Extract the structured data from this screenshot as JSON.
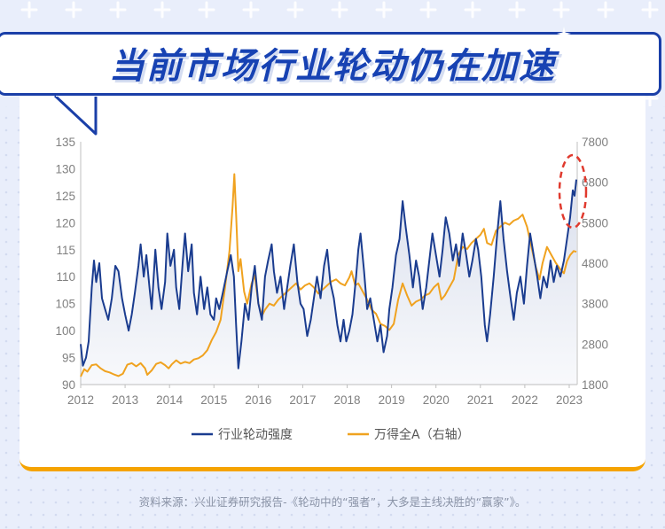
{
  "banner": {
    "title": "当前市场行业轮动仍在加速"
  },
  "source_note": "资料来源：兴业证券研究报告-《轮动中的“强者”，大多是主线决胜的“赢家”》。",
  "colors": {
    "rotation": "#1a3c8f",
    "index": "#f0a21f",
    "banner": "#1742b3",
    "highlight": "#e03a2e"
  },
  "chart_data": {
    "type": "line",
    "x_ticks": [
      "2012",
      "2013",
      "2014",
      "2015",
      "2016",
      "2017",
      "2018",
      "2019",
      "2020",
      "2021",
      "2022",
      "2023"
    ],
    "y_left": {
      "ticks": [
        "135",
        "130",
        "125",
        "120",
        "115",
        "110",
        "105",
        "100",
        "95",
        "90"
      ],
      "range": [
        90,
        135
      ]
    },
    "y_right": {
      "ticks": [
        "7800",
        "6800",
        "5800",
        "4800",
        "3800",
        "2800",
        "1800"
      ],
      "range": [
        1800,
        7800
      ]
    },
    "legend_position": "bottom",
    "grid": false,
    "annotation": "red dashed ellipse around the latest peak of 行业轮动强度 (early 2023)",
    "series": [
      {
        "name": "行业轮动强度",
        "axis": "left",
        "points": [
          [
            2012.0,
            97.5
          ],
          [
            2012.05,
            93.5
          ],
          [
            2012.12,
            95
          ],
          [
            2012.18,
            98
          ],
          [
            2012.25,
            108
          ],
          [
            2012.3,
            113
          ],
          [
            2012.35,
            109
          ],
          [
            2012.42,
            112.5
          ],
          [
            2012.48,
            106
          ],
          [
            2012.55,
            104
          ],
          [
            2012.62,
            102
          ],
          [
            2012.7,
            106
          ],
          [
            2012.78,
            112
          ],
          [
            2012.85,
            111
          ],
          [
            2012.93,
            106
          ],
          [
            2013.0,
            103
          ],
          [
            2013.08,
            100
          ],
          [
            2013.15,
            103
          ],
          [
            2013.22,
            107
          ],
          [
            2013.3,
            112
          ],
          [
            2013.35,
            116
          ],
          [
            2013.42,
            110
          ],
          [
            2013.48,
            114
          ],
          [
            2013.55,
            108
          ],
          [
            2013.6,
            104
          ],
          [
            2013.68,
            115
          ],
          [
            2013.75,
            108
          ],
          [
            2013.82,
            104
          ],
          [
            2013.9,
            109
          ],
          [
            2013.95,
            118
          ],
          [
            2014.02,
            112
          ],
          [
            2014.1,
            115
          ],
          [
            2014.15,
            108
          ],
          [
            2014.22,
            104
          ],
          [
            2014.3,
            113
          ],
          [
            2014.35,
            118
          ],
          [
            2014.42,
            111
          ],
          [
            2014.5,
            116
          ],
          [
            2014.55,
            107
          ],
          [
            2014.62,
            103
          ],
          [
            2014.7,
            110
          ],
          [
            2014.78,
            104
          ],
          [
            2014.85,
            108
          ],
          [
            2014.92,
            103
          ],
          [
            2015.0,
            102
          ],
          [
            2015.05,
            106
          ],
          [
            2015.12,
            104
          ],
          [
            2015.2,
            107
          ],
          [
            2015.3,
            111
          ],
          [
            2015.38,
            114
          ],
          [
            2015.45,
            110
          ],
          [
            2015.5,
            101
          ],
          [
            2015.55,
            93
          ],
          [
            2015.62,
            98
          ],
          [
            2015.7,
            105
          ],
          [
            2015.78,
            102
          ],
          [
            2015.85,
            108
          ],
          [
            2015.92,
            112
          ],
          [
            2016.0,
            105
          ],
          [
            2016.08,
            102
          ],
          [
            2016.15,
            110
          ],
          [
            2016.22,
            113
          ],
          [
            2016.3,
            116
          ],
          [
            2016.35,
            111
          ],
          [
            2016.42,
            107
          ],
          [
            2016.5,
            110
          ],
          [
            2016.58,
            104
          ],
          [
            2016.65,
            108
          ],
          [
            2016.72,
            112
          ],
          [
            2016.8,
            116
          ],
          [
            2016.88,
            109
          ],
          [
            2016.95,
            105
          ],
          [
            2017.02,
            104
          ],
          [
            2017.1,
            99
          ],
          [
            2017.18,
            102
          ],
          [
            2017.25,
            106
          ],
          [
            2017.32,
            110
          ],
          [
            2017.4,
            106
          ],
          [
            2017.48,
            112
          ],
          [
            2017.55,
            115
          ],
          [
            2017.62,
            109
          ],
          [
            2017.7,
            106
          ],
          [
            2017.78,
            101
          ],
          [
            2017.85,
            98
          ],
          [
            2017.92,
            102
          ],
          [
            2017.98,
            98
          ],
          [
            2018.05,
            100
          ],
          [
            2018.12,
            103
          ],
          [
            2018.2,
            110
          ],
          [
            2018.25,
            115
          ],
          [
            2018.3,
            118
          ],
          [
            2018.38,
            111
          ],
          [
            2018.45,
            104
          ],
          [
            2018.52,
            106
          ],
          [
            2018.6,
            102
          ],
          [
            2018.68,
            98
          ],
          [
            2018.75,
            101
          ],
          [
            2018.82,
            96
          ],
          [
            2018.9,
            99
          ],
          [
            2018.95,
            104
          ],
          [
            2019.02,
            108
          ],
          [
            2019.1,
            114
          ],
          [
            2019.18,
            117
          ],
          [
            2019.25,
            124
          ],
          [
            2019.32,
            119
          ],
          [
            2019.4,
            114
          ],
          [
            2019.48,
            108
          ],
          [
            2019.55,
            113
          ],
          [
            2019.62,
            110
          ],
          [
            2019.7,
            104
          ],
          [
            2019.78,
            108
          ],
          [
            2019.85,
            113
          ],
          [
            2019.92,
            118
          ],
          [
            2020.0,
            114
          ],
          [
            2020.08,
            110
          ],
          [
            2020.15,
            115
          ],
          [
            2020.22,
            121
          ],
          [
            2020.3,
            118
          ],
          [
            2020.38,
            113
          ],
          [
            2020.45,
            116
          ],
          [
            2020.52,
            112
          ],
          [
            2020.6,
            118
          ],
          [
            2020.68,
            114
          ],
          [
            2020.75,
            110
          ],
          [
            2020.82,
            113
          ],
          [
            2020.9,
            117
          ],
          [
            2020.95,
            115
          ],
          [
            2021.02,
            110
          ],
          [
            2021.1,
            101
          ],
          [
            2021.15,
            98
          ],
          [
            2021.22,
            103
          ],
          [
            2021.3,
            110
          ],
          [
            2021.38,
            118
          ],
          [
            2021.45,
            124
          ],
          [
            2021.52,
            117
          ],
          [
            2021.6,
            111
          ],
          [
            2021.68,
            106
          ],
          [
            2021.75,
            102
          ],
          [
            2021.82,
            107
          ],
          [
            2021.9,
            110
          ],
          [
            2021.98,
            105
          ],
          [
            2022.05,
            112
          ],
          [
            2022.12,
            118
          ],
          [
            2022.2,
            114
          ],
          [
            2022.28,
            110
          ],
          [
            2022.35,
            106
          ],
          [
            2022.42,
            110
          ],
          [
            2022.5,
            108
          ],
          [
            2022.58,
            113
          ],
          [
            2022.65,
            109
          ],
          [
            2022.72,
            112
          ],
          [
            2022.8,
            110
          ],
          [
            2022.88,
            113
          ],
          [
            2022.95,
            117
          ],
          [
            2023.02,
            121
          ],
          [
            2023.08,
            126
          ],
          [
            2023.12,
            125
          ],
          [
            2023.16,
            128
          ]
        ]
      },
      {
        "name": "万得全A（右轴）",
        "axis": "right",
        "points": [
          [
            2012.0,
            2000
          ],
          [
            2012.08,
            2180
          ],
          [
            2012.15,
            2120
          ],
          [
            2012.25,
            2280
          ],
          [
            2012.35,
            2300
          ],
          [
            2012.45,
            2200
          ],
          [
            2012.55,
            2130
          ],
          [
            2012.65,
            2100
          ],
          [
            2012.75,
            2050
          ],
          [
            2012.85,
            2010
          ],
          [
            2012.95,
            2070
          ],
          [
            2013.05,
            2290
          ],
          [
            2013.15,
            2330
          ],
          [
            2013.25,
            2250
          ],
          [
            2013.35,
            2330
          ],
          [
            2013.45,
            2200
          ],
          [
            2013.5,
            2040
          ],
          [
            2013.6,
            2150
          ],
          [
            2013.7,
            2310
          ],
          [
            2013.8,
            2350
          ],
          [
            2013.9,
            2280
          ],
          [
            2013.98,
            2200
          ],
          [
            2014.05,
            2300
          ],
          [
            2014.15,
            2400
          ],
          [
            2014.25,
            2320
          ],
          [
            2014.35,
            2360
          ],
          [
            2014.45,
            2330
          ],
          [
            2014.55,
            2420
          ],
          [
            2014.65,
            2450
          ],
          [
            2014.75,
            2520
          ],
          [
            2014.85,
            2650
          ],
          [
            2014.95,
            2900
          ],
          [
            2015.05,
            3100
          ],
          [
            2015.15,
            3400
          ],
          [
            2015.25,
            4200
          ],
          [
            2015.35,
            5100
          ],
          [
            2015.42,
            6200
          ],
          [
            2015.46,
            7000
          ],
          [
            2015.5,
            6000
          ],
          [
            2015.55,
            4600
          ],
          [
            2015.6,
            4900
          ],
          [
            2015.68,
            4100
          ],
          [
            2015.75,
            3800
          ],
          [
            2015.85,
            4300
          ],
          [
            2015.92,
            4500
          ],
          [
            2016.0,
            3800
          ],
          [
            2016.08,
            3500
          ],
          [
            2016.15,
            3650
          ],
          [
            2016.25,
            3800
          ],
          [
            2016.35,
            3750
          ],
          [
            2016.45,
            3900
          ],
          [
            2016.55,
            4000
          ],
          [
            2016.65,
            4100
          ],
          [
            2016.75,
            4200
          ],
          [
            2016.85,
            4300
          ],
          [
            2016.95,
            4150
          ],
          [
            2017.05,
            4250
          ],
          [
            2017.15,
            4300
          ],
          [
            2017.25,
            4200
          ],
          [
            2017.35,
            4050
          ],
          [
            2017.45,
            4150
          ],
          [
            2017.55,
            4250
          ],
          [
            2017.65,
            4350
          ],
          [
            2017.75,
            4400
          ],
          [
            2017.85,
            4300
          ],
          [
            2017.95,
            4250
          ],
          [
            2018.05,
            4450
          ],
          [
            2018.1,
            4600
          ],
          [
            2018.18,
            4250
          ],
          [
            2018.25,
            4300
          ],
          [
            2018.35,
            4100
          ],
          [
            2018.45,
            3900
          ],
          [
            2018.55,
            3650
          ],
          [
            2018.65,
            3550
          ],
          [
            2018.75,
            3300
          ],
          [
            2018.85,
            3250
          ],
          [
            2018.95,
            3150
          ],
          [
            2019.05,
            3300
          ],
          [
            2019.15,
            3900
          ],
          [
            2019.25,
            4300
          ],
          [
            2019.35,
            4000
          ],
          [
            2019.45,
            3750
          ],
          [
            2019.55,
            3850
          ],
          [
            2019.65,
            3900
          ],
          [
            2019.75,
            4000
          ],
          [
            2019.85,
            4050
          ],
          [
            2019.95,
            4200
          ],
          [
            2020.05,
            4300
          ],
          [
            2020.12,
            3900
          ],
          [
            2020.2,
            4000
          ],
          [
            2020.3,
            4200
          ],
          [
            2020.4,
            4400
          ],
          [
            2020.5,
            5000
          ],
          [
            2020.6,
            5200
          ],
          [
            2020.7,
            5150
          ],
          [
            2020.8,
            5300
          ],
          [
            2020.9,
            5400
          ],
          [
            2021.0,
            5500
          ],
          [
            2021.08,
            5650
          ],
          [
            2021.15,
            5300
          ],
          [
            2021.25,
            5250
          ],
          [
            2021.35,
            5600
          ],
          [
            2021.45,
            5700
          ],
          [
            2021.55,
            5800
          ],
          [
            2021.65,
            5750
          ],
          [
            2021.75,
            5850
          ],
          [
            2021.85,
            5900
          ],
          [
            2021.95,
            6000
          ],
          [
            2022.05,
            5700
          ],
          [
            2022.15,
            5200
          ],
          [
            2022.25,
            4700
          ],
          [
            2022.33,
            4400
          ],
          [
            2022.4,
            4800
          ],
          [
            2022.5,
            5200
          ],
          [
            2022.6,
            5000
          ],
          [
            2022.7,
            4800
          ],
          [
            2022.8,
            4650
          ],
          [
            2022.88,
            4550
          ],
          [
            2022.95,
            4850
          ],
          [
            2023.02,
            5000
          ],
          [
            2023.1,
            5100
          ],
          [
            2023.16,
            5080
          ]
        ]
      }
    ]
  }
}
